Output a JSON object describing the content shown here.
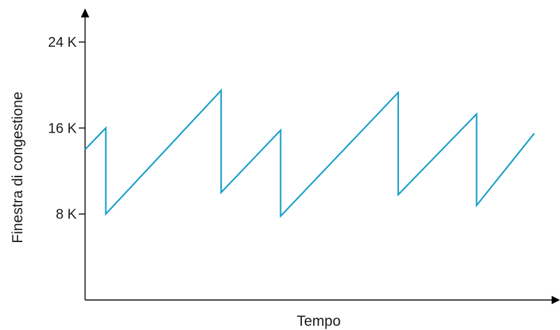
{
  "chart_data": {
    "type": "line",
    "title": "",
    "xlabel": "Tempo",
    "ylabel": "Finestra di congestione",
    "ylim": [
      0,
      27000
    ],
    "xlim": [
      0,
      100
    ],
    "yticks": [
      {
        "value": 8000,
        "label": "8 K"
      },
      {
        "value": 16000,
        "label": "16 K"
      },
      {
        "value": 24000,
        "label": "24 K"
      }
    ],
    "xticks": [],
    "grid": false,
    "legend": "none",
    "series": [
      {
        "color": "#1a9fc9",
        "points": [
          [
            0,
            14000
          ],
          [
            4.6,
            16000
          ],
          [
            4.6,
            8000
          ],
          [
            30.2,
            19500
          ],
          [
            30.2,
            10000
          ],
          [
            43.4,
            15800
          ],
          [
            43.4,
            7800
          ],
          [
            69.5,
            19300
          ],
          [
            69.5,
            9800
          ],
          [
            86.9,
            17300
          ],
          [
            86.9,
            8800
          ],
          [
            99.7,
            15500
          ]
        ]
      }
    ]
  }
}
